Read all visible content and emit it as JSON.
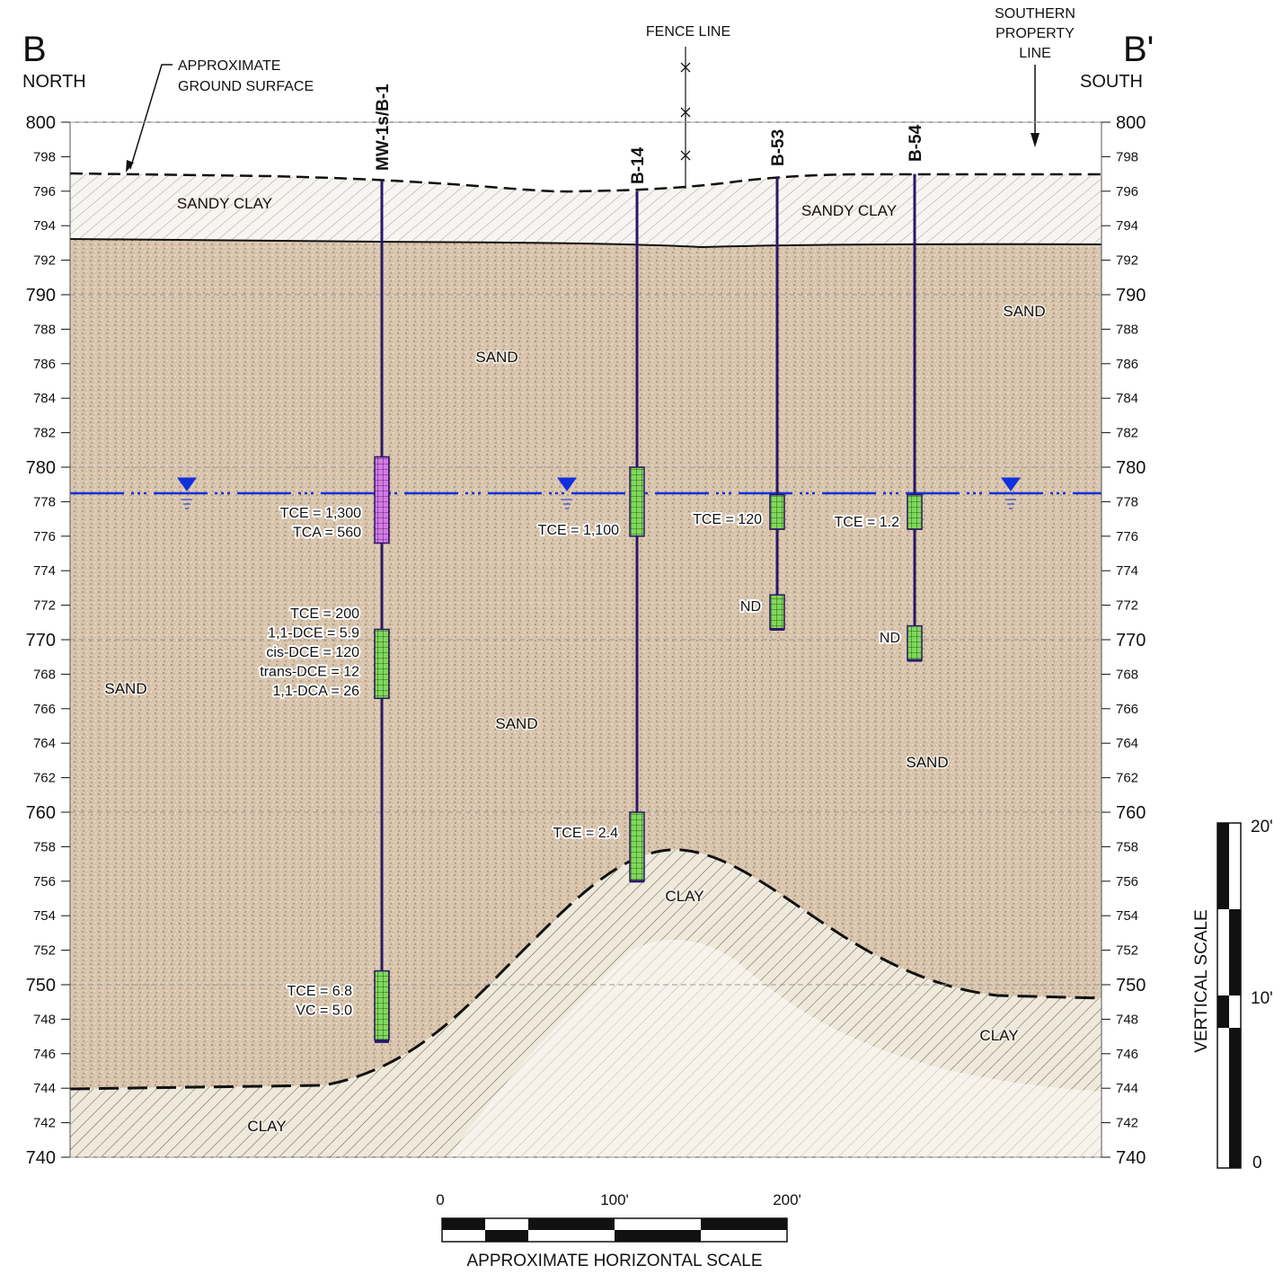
{
  "header": {
    "left_letter": "B",
    "left_direction": "NORTH",
    "right_letter": "B'",
    "right_direction": "SOUTH"
  },
  "annotations": {
    "ground_surface": [
      "APPROXIMATE",
      "GROUND SURFACE"
    ],
    "fence_line": "FENCE LINE",
    "property_line": [
      "SOUTHERN",
      "PROPERTY",
      "LINE"
    ]
  },
  "elevation_ticks": [
    800,
    798,
    796,
    794,
    792,
    790,
    788,
    786,
    784,
    782,
    780,
    778,
    776,
    774,
    772,
    770,
    768,
    766,
    764,
    762,
    760,
    758,
    756,
    754,
    752,
    750,
    748,
    746,
    744,
    742,
    740
  ],
  "borings": [
    {
      "name": "MW-1s/B-1",
      "results": [
        {
          "lines": [
            "TCE = 1,300",
            "TCA = 560"
          ]
        },
        {
          "lines": [
            "TCE = 200",
            "1,1-DCE = 5.9",
            "cis-DCE = 120",
            "trans-DCE = 12",
            "1,1-DCA = 26"
          ]
        },
        {
          "lines": [
            "TCE = 6.8",
            "VC = 5.0"
          ]
        }
      ]
    },
    {
      "name": "B-14",
      "results": [
        {
          "lines": [
            "TCE = 1,100"
          ]
        },
        {
          "lines": [
            "TCE = 2.4"
          ]
        }
      ]
    },
    {
      "name": "B-53",
      "results": [
        {
          "lines": [
            "TCE = 120"
          ]
        },
        {
          "lines": [
            "ND"
          ]
        }
      ]
    },
    {
      "name": "B-54",
      "results": [
        {
          "lines": [
            "TCE = 1.2"
          ]
        },
        {
          "lines": [
            "ND"
          ]
        }
      ]
    }
  ],
  "soil_labels": [
    "SANDY CLAY",
    "SANDY CLAY",
    "SAND",
    "SAND",
    "SAND",
    "SAND",
    "SAND",
    "CLAY",
    "CLAY",
    "CLAY"
  ],
  "horizontal_scale": {
    "ticks": [
      "0",
      "100'",
      "200'"
    ],
    "title": "APPROXIMATE HORIZONTAL SCALE"
  },
  "vertical_scale": {
    "ticks": [
      "20'",
      "10'",
      "0"
    ],
    "title": "VERTICAL SCALE"
  }
}
